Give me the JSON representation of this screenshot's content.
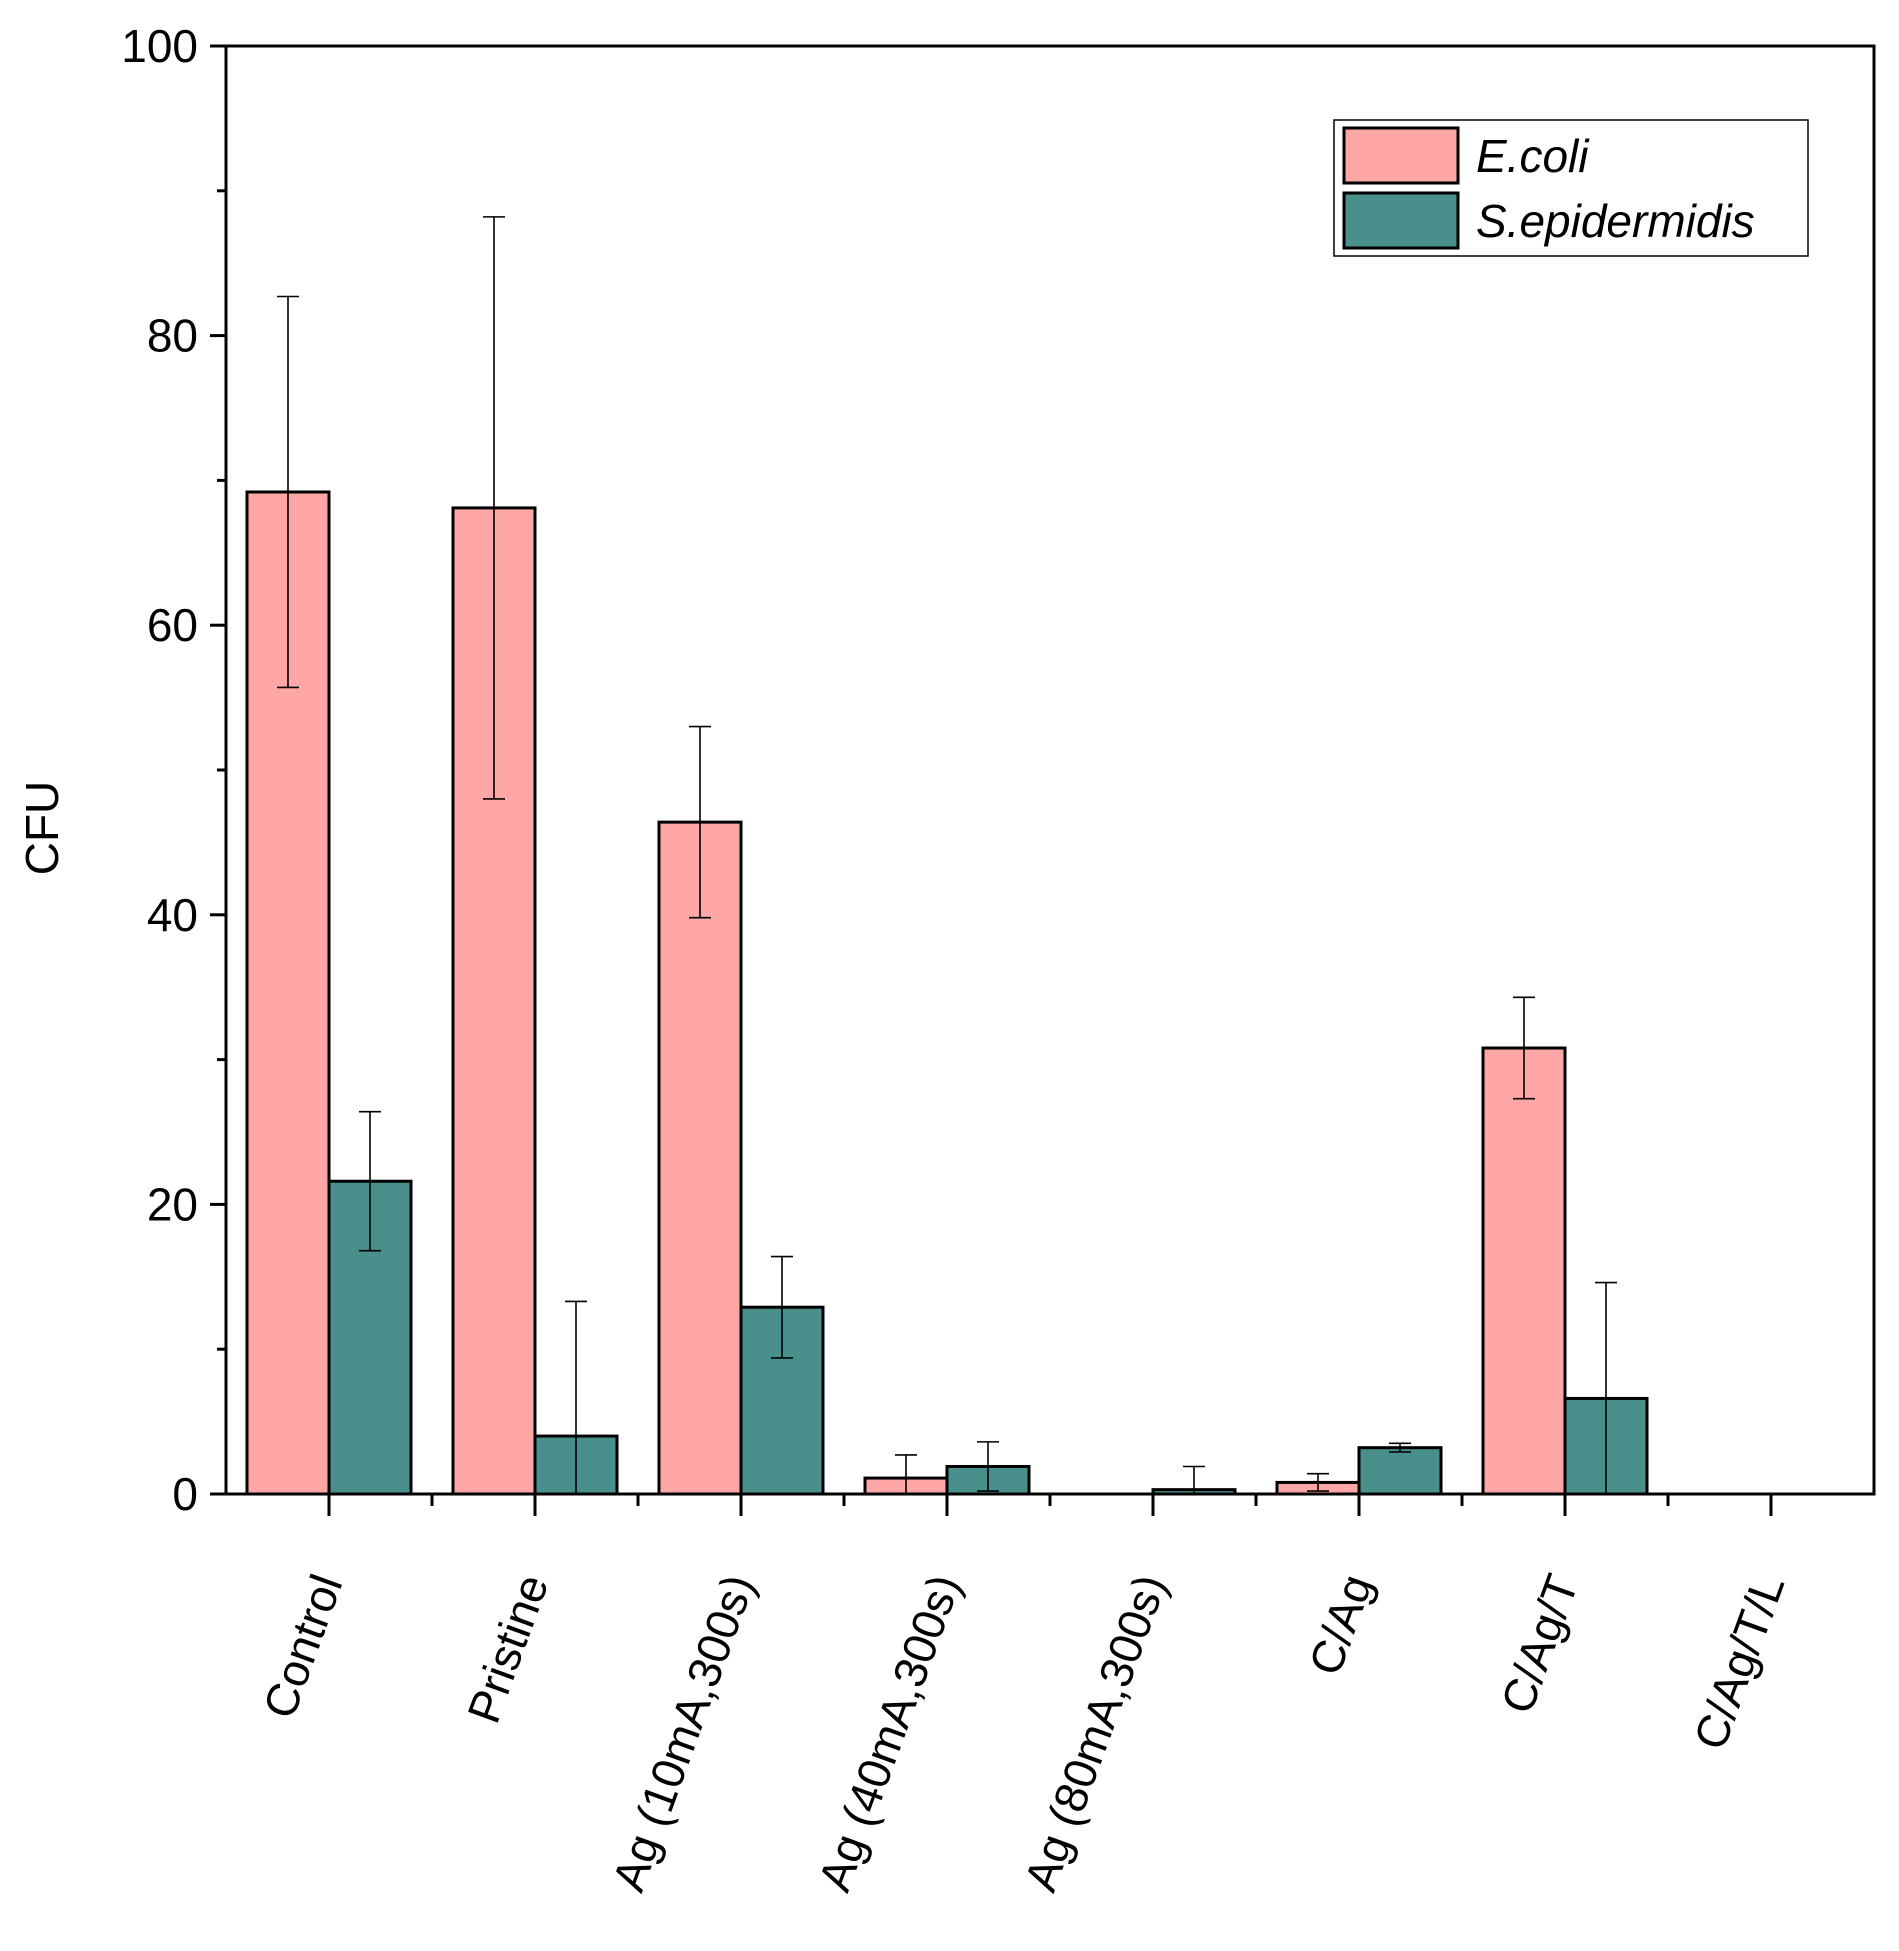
{
  "chart_data": {
    "type": "bar",
    "title": "",
    "xlabel": "",
    "ylabel": "CFU",
    "ylim": [
      0,
      100
    ],
    "yticks": [
      "0",
      "20",
      "40",
      "60",
      "80",
      "100"
    ],
    "grid": false,
    "legend_position": "top-right",
    "categories": [
      "Control",
      "Pristine",
      "Ag (10mA,300s)",
      "Ag (40mA,300s)",
      "Ag (80mA,300s)",
      "C/Ag",
      "C/Ag/T",
      "C/Ag/T/L"
    ],
    "series": [
      {
        "name": "E.coli",
        "color": "#FFA6A6",
        "values": [
          69.2,
          68.1,
          46.4,
          1.1,
          0,
          0.8,
          30.8,
          0
        ],
        "errors": [
          13.5,
          20.1,
          6.6,
          1.6,
          0,
          0.6,
          3.5,
          0
        ]
      },
      {
        "name": "S.epidermidis",
        "color": "#49908C",
        "values": [
          21.6,
          4.0,
          12.9,
          1.9,
          0.3,
          3.2,
          6.6,
          0
        ],
        "errors": [
          4.8,
          9.3,
          3.5,
          1.7,
          1.6,
          0.3,
          8.0,
          0
        ]
      }
    ]
  }
}
